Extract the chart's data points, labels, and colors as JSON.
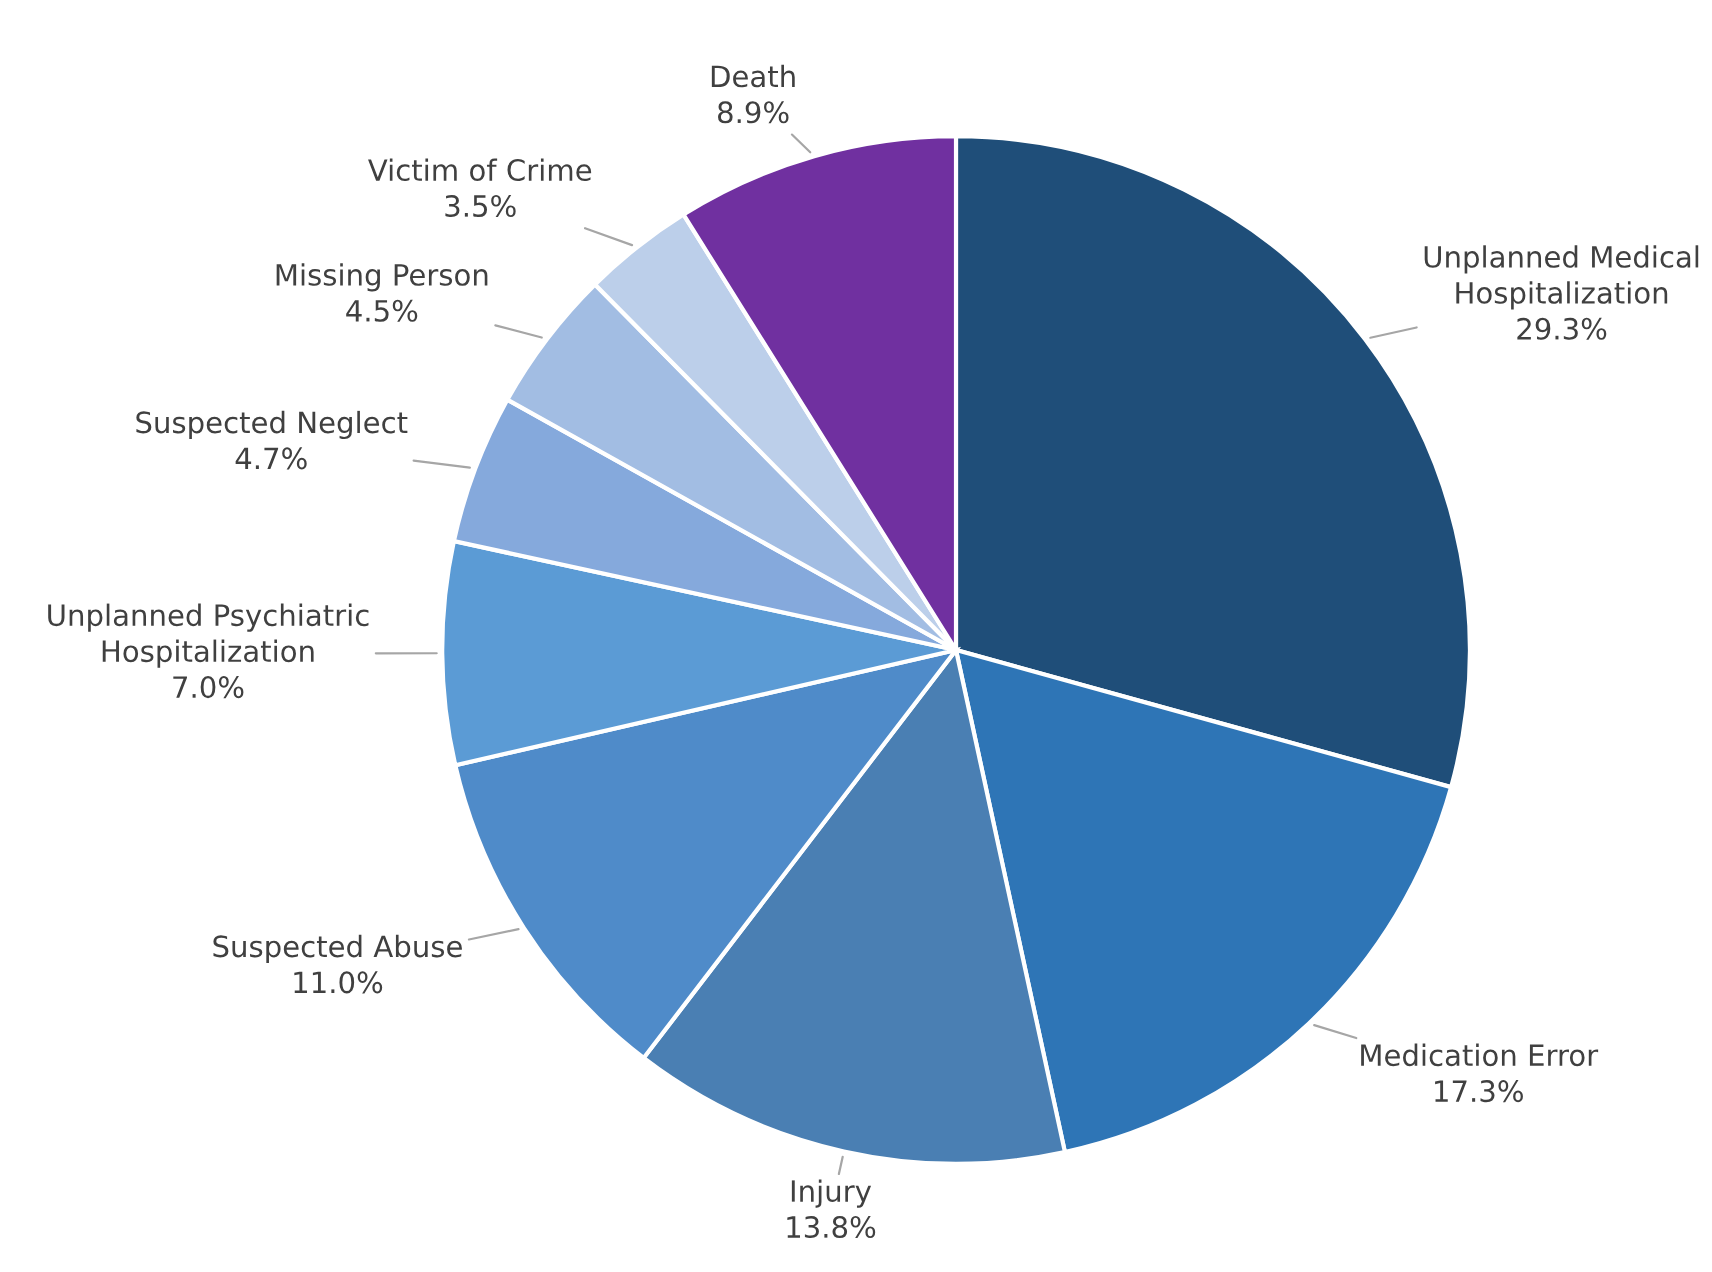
{
  "chart_data": {
    "type": "pie",
    "categories": [
      "Unplanned Medical\nHospitalization",
      "Medication Error",
      "Injury",
      "Suspected Abuse",
      "Unplanned Psychiatric\nHospitalization",
      "Suspected Neglect",
      "Missing Person",
      "Victim of Crime",
      "Death"
    ],
    "values": [
      29.3,
      17.3,
      13.8,
      11.0,
      7.0,
      4.7,
      4.5,
      3.5,
      8.9
    ],
    "colors": [
      "#1f4e79",
      "#2e75b6",
      "#4a7fb3",
      "#4f8bc9",
      "#5b9bd5",
      "#85a9dc",
      "#a2bde3",
      "#bccfea",
      "#7030a0"
    ],
    "value_labels": [
      "29.3%",
      "17.3%",
      "13.8%",
      "11.0%",
      "7.0%",
      "4.7%",
      "4.5%",
      "3.5%",
      "8.9%"
    ]
  }
}
